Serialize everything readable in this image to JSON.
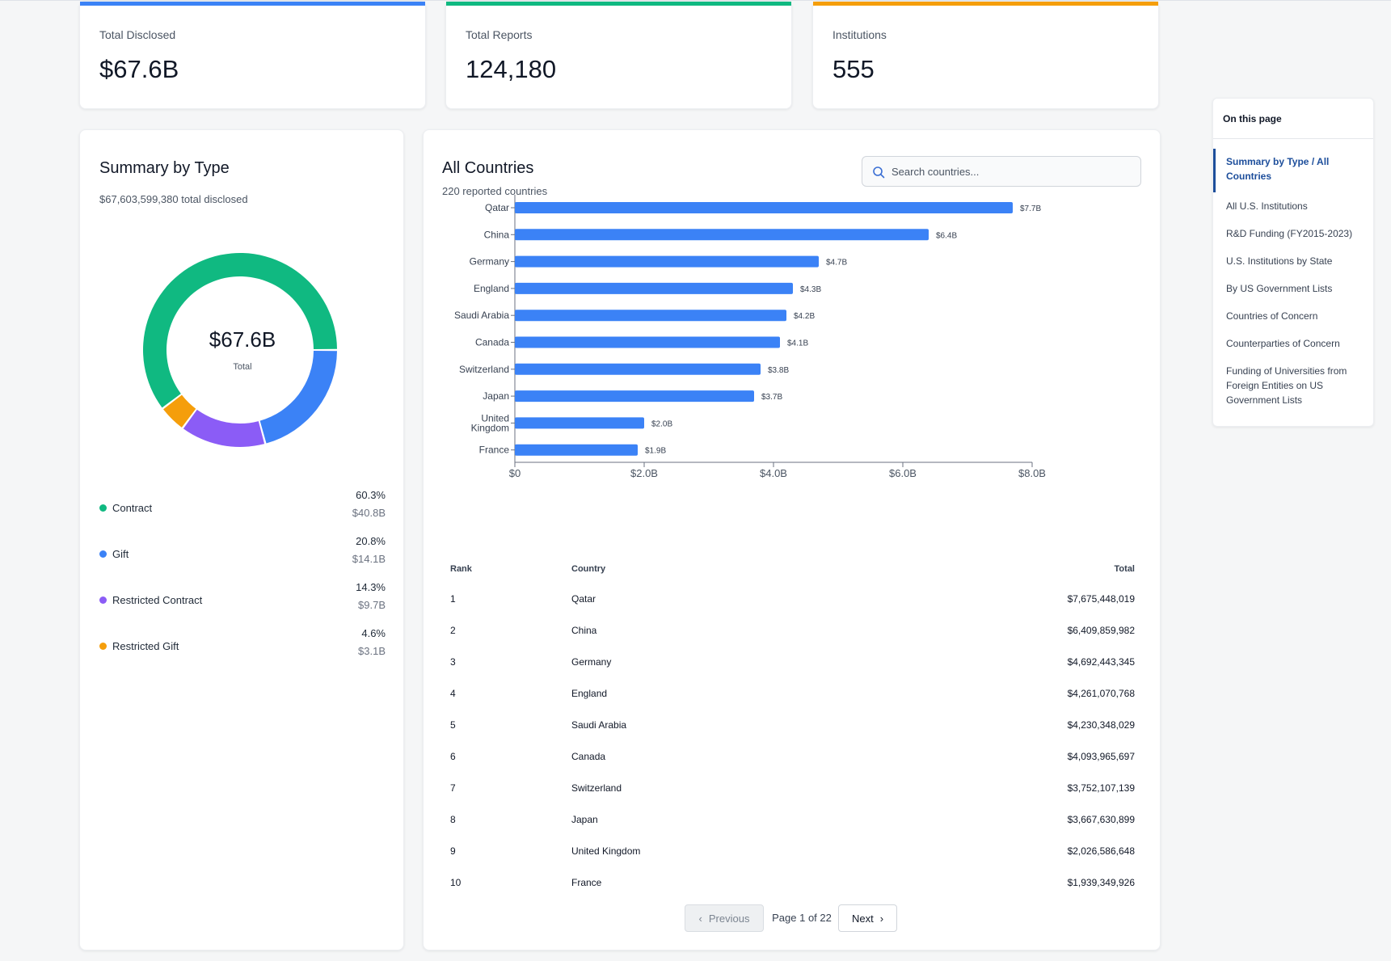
{
  "stats": [
    {
      "label": "Total Disclosed",
      "value": "$67.6B",
      "color": "#3b82f6"
    },
    {
      "label": "Total Reports",
      "value": "124,180",
      "color": "#10b981"
    },
    {
      "label": "Institutions",
      "value": "555",
      "color": "#f59e0b"
    }
  ],
  "summary": {
    "title": "Summary by Type",
    "subtitle": "$67,603,599,380 total disclosed",
    "center_value": "$67.6B",
    "center_label": "Total",
    "legend": [
      {
        "name": "Contract",
        "pct": "60.3%",
        "amount": "$40.8B",
        "value": 60.3,
        "color": "#10b981"
      },
      {
        "name": "Gift",
        "pct": "20.8%",
        "amount": "$14.1B",
        "value": 20.8,
        "color": "#3b82f6"
      },
      {
        "name": "Restricted Contract",
        "pct": "14.3%",
        "amount": "$9.7B",
        "value": 14.3,
        "color": "#8b5cf6"
      },
      {
        "name": "Restricted Gift",
        "pct": "4.6%",
        "amount": "$3.1B",
        "value": 4.6,
        "color": "#f59e0b"
      }
    ]
  },
  "countries": {
    "title": "All Countries",
    "subtitle": "220 reported countries",
    "search_placeholder": "Search countries...",
    "table_headers": {
      "rank": "Rank",
      "country": "Country",
      "total": "Total"
    },
    "rows": [
      {
        "rank": "1",
        "country": "Qatar",
        "total": "$7,675,448,019"
      },
      {
        "rank": "2",
        "country": "China",
        "total": "$6,409,859,982"
      },
      {
        "rank": "3",
        "country": "Germany",
        "total": "$4,692,443,345"
      },
      {
        "rank": "4",
        "country": "England",
        "total": "$4,261,070,768"
      },
      {
        "rank": "5",
        "country": "Saudi Arabia",
        "total": "$4,230,348,029"
      },
      {
        "rank": "6",
        "country": "Canada",
        "total": "$4,093,965,697"
      },
      {
        "rank": "7",
        "country": "Switzerland",
        "total": "$3,752,107,139"
      },
      {
        "rank": "8",
        "country": "Japan",
        "total": "$3,667,630,899"
      },
      {
        "rank": "9",
        "country": "United Kingdom",
        "total": "$2,026,586,648"
      },
      {
        "rank": "10",
        "country": "France",
        "total": "$1,939,349,926"
      }
    ],
    "pagination": {
      "previous": "Previous",
      "next": "Next",
      "info": "Page 1 of 22"
    }
  },
  "chart_data": {
    "type": "bar",
    "orientation": "horizontal",
    "categories": [
      "Qatar",
      "China",
      "Germany",
      "England",
      "Saudi Arabia",
      "Canada",
      "Switzerland",
      "Japan",
      "United Kingdom",
      "France"
    ],
    "values": [
      7.7,
      6.4,
      4.7,
      4.3,
      4.2,
      4.1,
      3.8,
      3.7,
      2.0,
      1.9
    ],
    "value_labels": [
      "$7.7B",
      "$6.4B",
      "$4.7B",
      "$4.3B",
      "$4.2B",
      "$4.1B",
      "$3.8B",
      "$3.7B",
      "$2.0B",
      "$1.9B"
    ],
    "xlim": [
      0,
      8
    ],
    "xticks": [
      0,
      2,
      4,
      6,
      8
    ],
    "xtick_labels": [
      "$0",
      "$2.0B",
      "$4.0B",
      "$6.0B",
      "$8.0B"
    ],
    "unit": "billions USD",
    "bar_color": "#3b82f6"
  },
  "toc": {
    "title": "On this page",
    "items": [
      {
        "label": "Summary by Type / All Countries",
        "active": true
      },
      {
        "label": "All U.S. Institutions",
        "active": false
      },
      {
        "label": "R&D Funding (FY2015-2023)",
        "active": false
      },
      {
        "label": "U.S. Institutions by State",
        "active": false
      },
      {
        "label": "By US Government Lists",
        "active": false
      },
      {
        "label": "Countries of Concern",
        "active": false
      },
      {
        "label": "Counterparties of Concern",
        "active": false
      },
      {
        "label": "Funding of Universities from Foreign Entities on US Government Lists",
        "active": false
      }
    ]
  }
}
